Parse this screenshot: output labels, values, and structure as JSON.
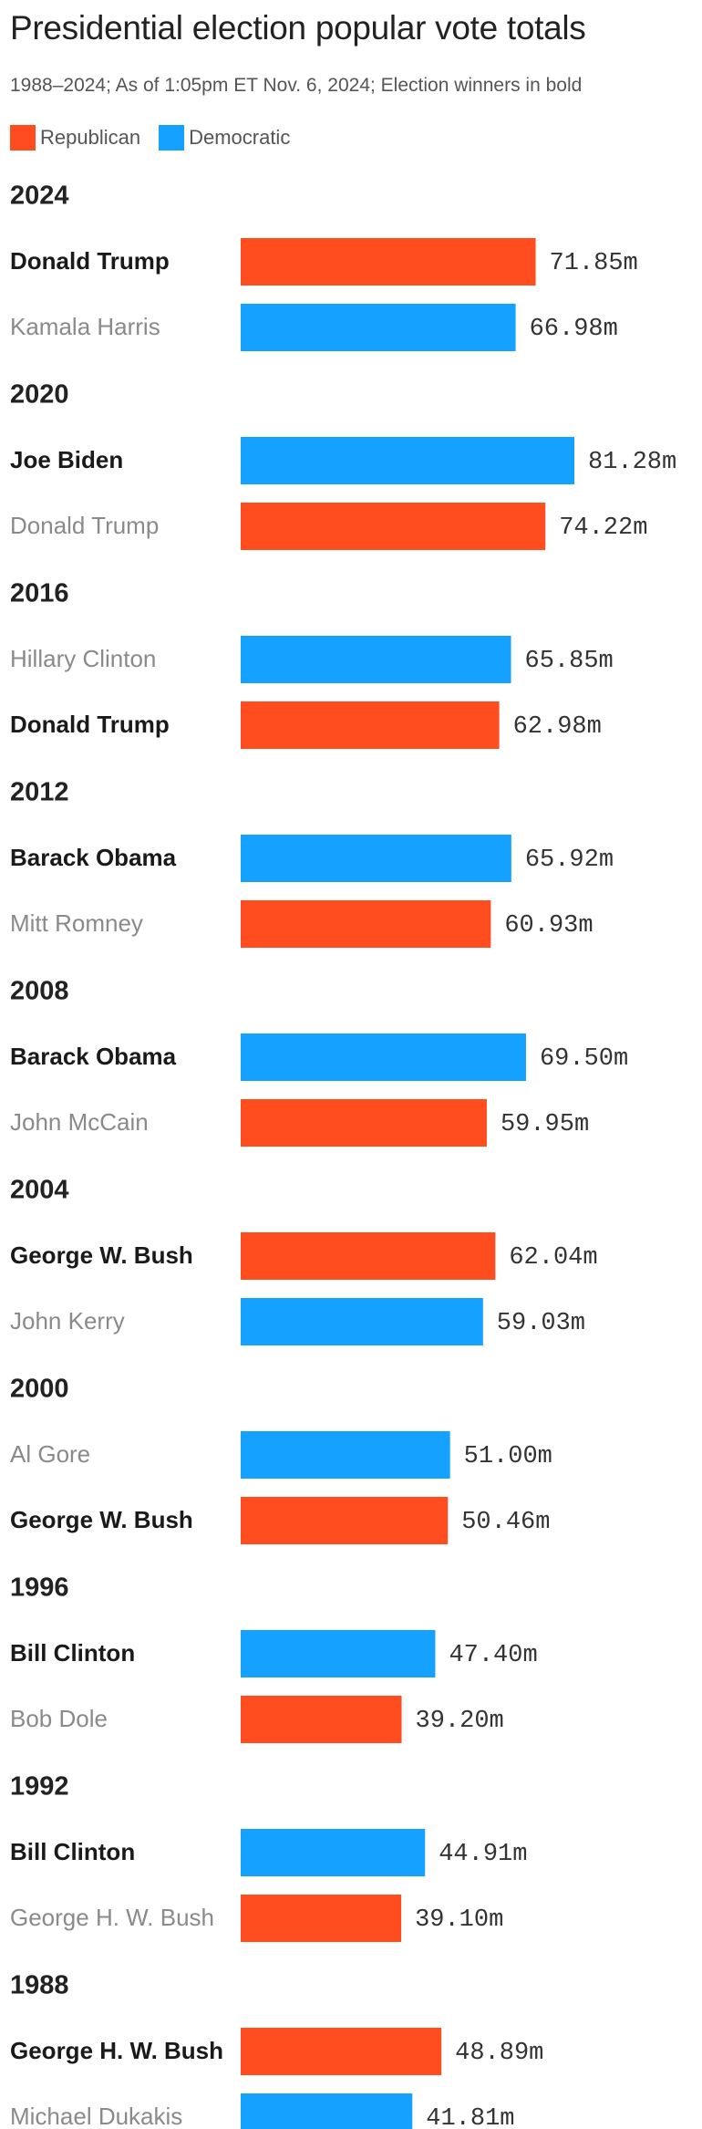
{
  "chart_data": {
    "type": "bar",
    "orientation": "horizontal",
    "title": "Presidential election popular vote totals",
    "subtitle": "1988–2024; As of 1:05pm ET Nov. 6, 2024; Election winners in bold",
    "unit_suffix": "m",
    "xlim": [
      0,
      81.28
    ],
    "legend": [
      {
        "name": "Republican",
        "color": "#ff4d1f"
      },
      {
        "name": "Democratic",
        "color": "#15a1ff"
      }
    ],
    "colors": {
      "Republican": "#ff4d1f",
      "Democratic": "#15a1ff"
    },
    "groups": [
      {
        "year": "2024",
        "candidates": [
          {
            "name": "Donald Trump",
            "party": "Republican",
            "value": 71.85,
            "label": "71.85m",
            "winner": true
          },
          {
            "name": "Kamala Harris",
            "party": "Democratic",
            "value": 66.98,
            "label": "66.98m",
            "winner": false
          }
        ]
      },
      {
        "year": "2020",
        "candidates": [
          {
            "name": "Joe Biden",
            "party": "Democratic",
            "value": 81.28,
            "label": "81.28m",
            "winner": true
          },
          {
            "name": "Donald Trump",
            "party": "Republican",
            "value": 74.22,
            "label": "74.22m",
            "winner": false
          }
        ]
      },
      {
        "year": "2016",
        "candidates": [
          {
            "name": "Hillary Clinton",
            "party": "Democratic",
            "value": 65.85,
            "label": "65.85m",
            "winner": false
          },
          {
            "name": "Donald Trump",
            "party": "Republican",
            "value": 62.98,
            "label": "62.98m",
            "winner": true
          }
        ]
      },
      {
        "year": "2012",
        "candidates": [
          {
            "name": "Barack Obama",
            "party": "Democratic",
            "value": 65.92,
            "label": "65.92m",
            "winner": true
          },
          {
            "name": "Mitt Romney",
            "party": "Republican",
            "value": 60.93,
            "label": "60.93m",
            "winner": false
          }
        ]
      },
      {
        "year": "2008",
        "candidates": [
          {
            "name": "Barack Obama",
            "party": "Democratic",
            "value": 69.5,
            "label": "69.50m",
            "winner": true
          },
          {
            "name": "John McCain",
            "party": "Republican",
            "value": 59.95,
            "label": "59.95m",
            "winner": false
          }
        ]
      },
      {
        "year": "2004",
        "candidates": [
          {
            "name": "George W. Bush",
            "party": "Republican",
            "value": 62.04,
            "label": "62.04m",
            "winner": true
          },
          {
            "name": "John Kerry",
            "party": "Democratic",
            "value": 59.03,
            "label": "59.03m",
            "winner": false
          }
        ]
      },
      {
        "year": "2000",
        "candidates": [
          {
            "name": "Al Gore",
            "party": "Democratic",
            "value": 51.0,
            "label": "51.00m",
            "winner": false
          },
          {
            "name": "George W. Bush",
            "party": "Republican",
            "value": 50.46,
            "label": "50.46m",
            "winner": true
          }
        ]
      },
      {
        "year": "1996",
        "candidates": [
          {
            "name": "Bill Clinton",
            "party": "Democratic",
            "value": 47.4,
            "label": "47.40m",
            "winner": true
          },
          {
            "name": "Bob Dole",
            "party": "Republican",
            "value": 39.2,
            "label": "39.20m",
            "winner": false
          }
        ]
      },
      {
        "year": "1992",
        "candidates": [
          {
            "name": "Bill Clinton",
            "party": "Democratic",
            "value": 44.91,
            "label": "44.91m",
            "winner": true
          },
          {
            "name": "George H. W. Bush",
            "party": "Republican",
            "value": 39.1,
            "label": "39.10m",
            "winner": false
          }
        ]
      },
      {
        "year": "1988",
        "candidates": [
          {
            "name": "George H. W. Bush",
            "party": "Republican",
            "value": 48.89,
            "label": "48.89m",
            "winner": true
          },
          {
            "name": "Michael Dukakis",
            "party": "Democratic",
            "value": 41.81,
            "label": "41.81m",
            "winner": false
          }
        ]
      }
    ]
  }
}
